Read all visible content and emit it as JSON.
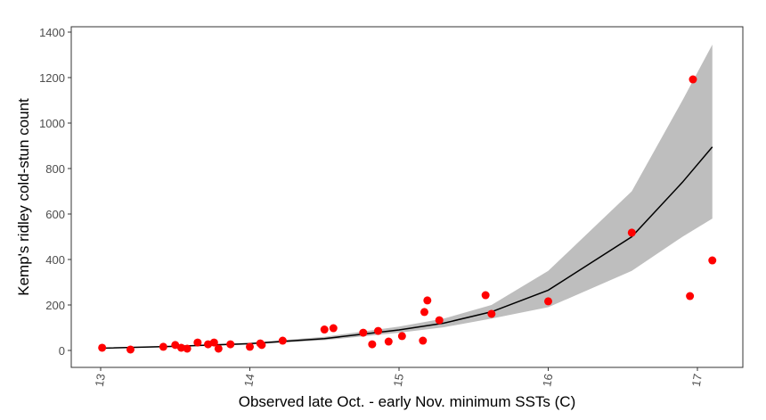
{
  "chart_data": {
    "type": "scatter",
    "title": "",
    "xlabel": "Observed late Oct. - early Nov. minimum SSTs (C)",
    "ylabel": "Kemp's ridley cold-stun count",
    "xlim": [
      12.8,
      17.25
    ],
    "ylim": [
      -60,
      1400
    ],
    "xticks": [
      "13",
      "14",
      "15",
      "16",
      "17"
    ],
    "yticks": [
      "0",
      "200",
      "400",
      "600",
      "800",
      "1000",
      "1200",
      "1400"
    ],
    "grid": false,
    "colors": {
      "points": "#ff0000",
      "line": "#000000",
      "band": "#bebebe"
    },
    "points": [
      [
        13.01,
        12
      ],
      [
        13.2,
        4
      ],
      [
        13.42,
        16
      ],
      [
        13.5,
        24
      ],
      [
        13.54,
        12
      ],
      [
        13.58,
        8
      ],
      [
        13.65,
        35
      ],
      [
        13.72,
        27
      ],
      [
        13.76,
        35
      ],
      [
        13.79,
        8
      ],
      [
        13.87,
        27
      ],
      [
        14.0,
        16
      ],
      [
        14.07,
        31
      ],
      [
        14.08,
        24
      ],
      [
        14.22,
        43
      ],
      [
        14.5,
        92
      ],
      [
        14.56,
        98
      ],
      [
        14.76,
        78
      ],
      [
        14.82,
        27
      ],
      [
        14.86,
        86
      ],
      [
        14.93,
        39
      ],
      [
        15.02,
        63
      ],
      [
        15.16,
        43
      ],
      [
        15.17,
        169
      ],
      [
        15.19,
        220
      ],
      [
        15.27,
        133
      ],
      [
        15.58,
        243
      ],
      [
        15.62,
        161
      ],
      [
        16.0,
        216
      ],
      [
        16.56,
        518
      ],
      [
        16.95,
        239
      ],
      [
        16.97,
        1192
      ],
      [
        17.1,
        396
      ]
    ],
    "fit": [
      [
        13.0,
        10
      ],
      [
        13.5,
        18
      ],
      [
        14.0,
        30
      ],
      [
        14.5,
        52
      ],
      [
        15.0,
        90
      ],
      [
        15.3,
        120
      ],
      [
        15.62,
        170
      ],
      [
        16.0,
        265
      ],
      [
        16.56,
        500
      ],
      [
        16.9,
        740
      ],
      [
        17.1,
        895
      ]
    ],
    "band_upper": [
      [
        13.0,
        12
      ],
      [
        13.5,
        21
      ],
      [
        14.0,
        34
      ],
      [
        14.5,
        60
      ],
      [
        15.0,
        105
      ],
      [
        15.3,
        140
      ],
      [
        15.62,
        200
      ],
      [
        16.0,
        350
      ],
      [
        16.56,
        700
      ],
      [
        16.9,
        1100
      ],
      [
        17.1,
        1345
      ]
    ],
    "band_lower": [
      [
        13.0,
        8
      ],
      [
        13.5,
        15
      ],
      [
        14.0,
        26
      ],
      [
        14.5,
        45
      ],
      [
        15.0,
        78
      ],
      [
        15.3,
        102
      ],
      [
        15.62,
        140
      ],
      [
        16.0,
        190
      ],
      [
        16.56,
        350
      ],
      [
        16.9,
        500
      ],
      [
        17.1,
        580
      ]
    ]
  }
}
